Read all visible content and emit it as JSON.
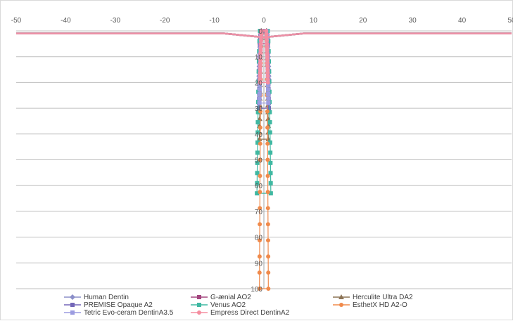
{
  "chart_data": {
    "type": "line",
    "title": "",
    "xlabel": "",
    "ylabel": "",
    "xlim": [
      -50,
      50
    ],
    "ylim": [
      0,
      100
    ],
    "y_axis_reversed": true,
    "gridlines": "horizontal",
    "legend_position": "bottom",
    "x_tick_labels": [
      "-50",
      "-40",
      "-30",
      "-20",
      "-10",
      "0",
      "10",
      "20",
      "30",
      "40",
      "50"
    ],
    "y_tick_labels": [
      "0",
      "10",
      "20",
      "30",
      "40",
      "50",
      "60",
      "70",
      "80",
      "90",
      "100"
    ],
    "series": [
      {
        "name": "Human Dentin",
        "color": "#8b8fc9",
        "marker": "diamond",
        "depth": 20,
        "halfwidth": 1.0
      },
      {
        "name": "G-ænial AO2",
        "color": "#a3467f",
        "marker": "square",
        "depth": 5,
        "halfwidth": 0.8
      },
      {
        "name": "Herculite Ultra DA2",
        "color": "#8c7355",
        "marker": "triangle",
        "depth": 42,
        "halfwidth": 0.9
      },
      {
        "name": "PREMISE Opaque A2",
        "color": "#7367b8",
        "marker": "square",
        "depth": 30,
        "halfwidth": 1.0
      },
      {
        "name": "Venus AO2",
        "color": "#3fb8a2",
        "marker": "square",
        "depth": 63,
        "halfwidth": 1.4
      },
      {
        "name": "EsthetX HD A2-O",
        "color": "#f08a4b",
        "marker": "circle",
        "depth": 100,
        "halfwidth": 0.9
      },
      {
        "name": "Tetric Evo-ceram DentinA3.5",
        "color": "#9c9ce0",
        "marker": "square",
        "depth": 28,
        "halfwidth": 0.9
      },
      {
        "name": "Empress Direct DentinA2",
        "color": "#f58ea0",
        "marker": "circle",
        "depth": 20,
        "halfwidth": 0.8
      }
    ]
  }
}
